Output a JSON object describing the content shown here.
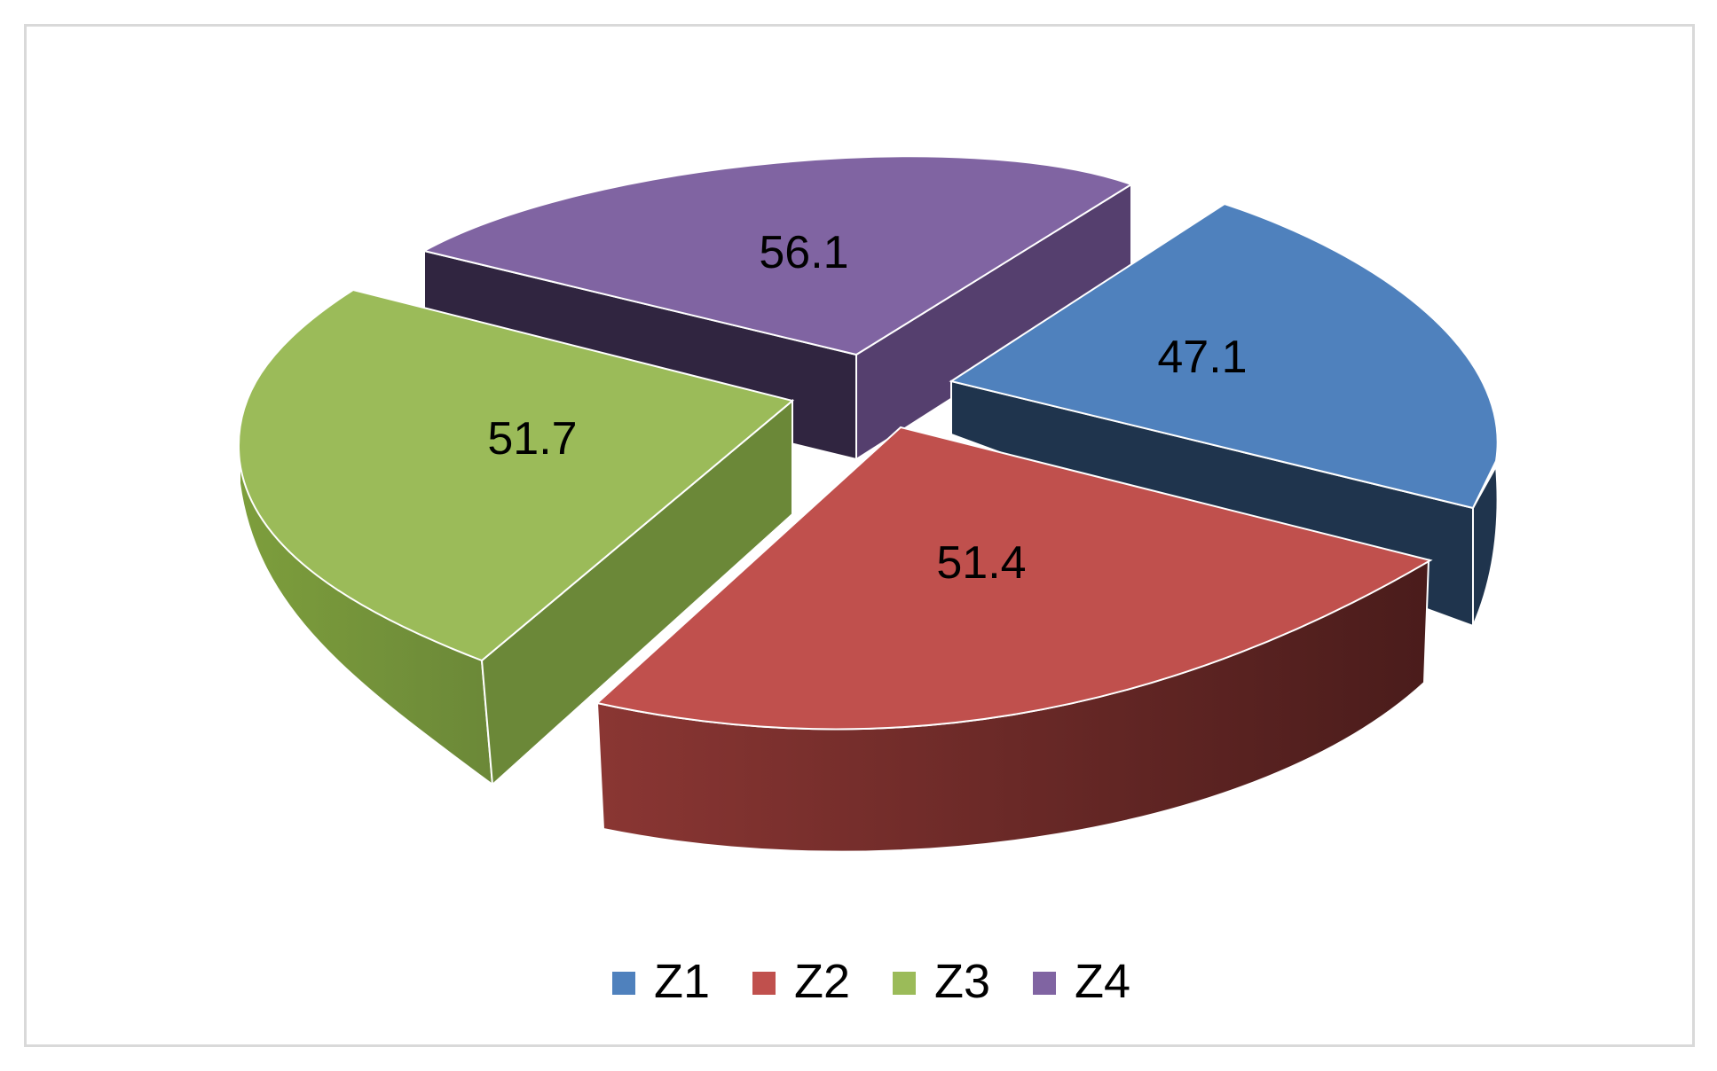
{
  "chart_data": {
    "type": "pie",
    "style": "3d-exploded",
    "title": "",
    "legend_position": "bottom",
    "slices": [
      {
        "label": "Z1",
        "value": 47.1,
        "value_label": "47.1",
        "color": "#4f81bd"
      },
      {
        "label": "Z2",
        "value": 51.4,
        "value_label": "51.4",
        "color": "#c0504d"
      },
      {
        "label": "Z3",
        "value": 51.7,
        "value_label": "51.7",
        "color": "#9bbb59"
      },
      {
        "label": "Z4",
        "value": 56.1,
        "value_label": "56.1",
        "color": "#8064a2"
      }
    ]
  }
}
